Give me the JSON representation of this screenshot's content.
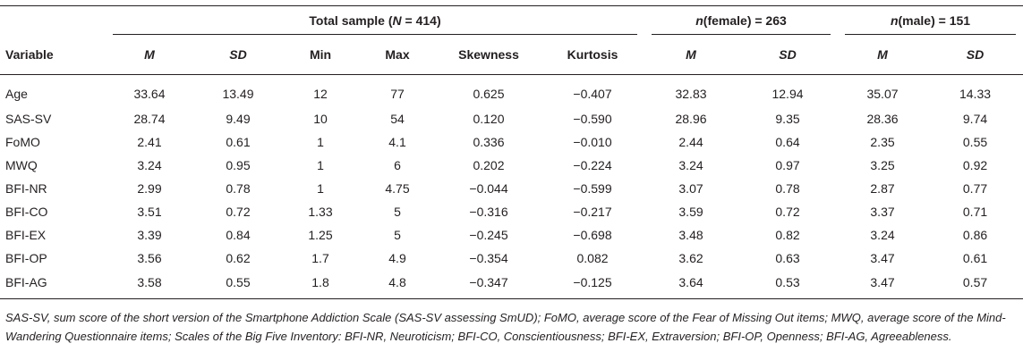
{
  "table": {
    "groups": {
      "total": {
        "prefix": "Total sample (",
        "var": "N",
        "suffix": " = 414)"
      },
      "female": {
        "prefix": "",
        "var": "n",
        "suffix": "(female) = 263"
      },
      "male": {
        "prefix": "",
        "var": "n",
        "suffix": "(male) = 151"
      }
    },
    "columns": [
      "Variable",
      "M",
      "SD",
      "Min",
      "Max",
      "Skewness",
      "Kurtosis",
      "M",
      "SD",
      "M",
      "SD"
    ],
    "rows": [
      [
        "Age",
        "33.64",
        "13.49",
        "12",
        "77",
        "0.625",
        "−0.407",
        "32.83",
        "12.94",
        "35.07",
        "14.33"
      ],
      [
        "SAS-SV",
        "28.74",
        "9.49",
        "10",
        "54",
        "0.120",
        "−0.590",
        "28.96",
        "9.35",
        "28.36",
        "9.74"
      ],
      [
        "FoMO",
        "2.41",
        "0.61",
        "1",
        "4.1",
        "0.336",
        "−0.010",
        "2.44",
        "0.64",
        "2.35",
        "0.55"
      ],
      [
        "MWQ",
        "3.24",
        "0.95",
        "1",
        "6",
        "0.202",
        "−0.224",
        "3.24",
        "0.97",
        "3.25",
        "0.92"
      ],
      [
        "BFI-NR",
        "2.99",
        "0.78",
        "1",
        "4.75",
        "−0.044",
        "−0.599",
        "3.07",
        "0.78",
        "2.87",
        "0.77"
      ],
      [
        "BFI-CO",
        "3.51",
        "0.72",
        "1.33",
        "5",
        "−0.316",
        "−0.217",
        "3.59",
        "0.72",
        "3.37",
        "0.71"
      ],
      [
        "BFI-EX",
        "3.39",
        "0.84",
        "1.25",
        "5",
        "−0.245",
        "−0.698",
        "3.48",
        "0.82",
        "3.24",
        "0.86"
      ],
      [
        "BFI-OP",
        "3.56",
        "0.62",
        "1.7",
        "4.9",
        "−0.354",
        "0.082",
        "3.62",
        "0.63",
        "3.47",
        "0.61"
      ],
      [
        "BFI-AG",
        "3.58",
        "0.55",
        "1.8",
        "4.8",
        "−0.347",
        "−0.125",
        "3.64",
        "0.53",
        "3.47",
        "0.57"
      ]
    ],
    "footnote": "SAS-SV, sum score of the short version of the Smartphone Addiction Scale (SAS-SV assessing SmUD); FoMO, average score of the Fear of Missing Out items; MWQ, average score of the Mind-Wandering Questionnaire items; Scales of the Big Five Inventory: BFI-NR, Neuroticism; BFI-CO, Conscientiousness; BFI-EX, Extraversion; BFI-OP, Openness; BFI-AG, Agreeableness."
  }
}
